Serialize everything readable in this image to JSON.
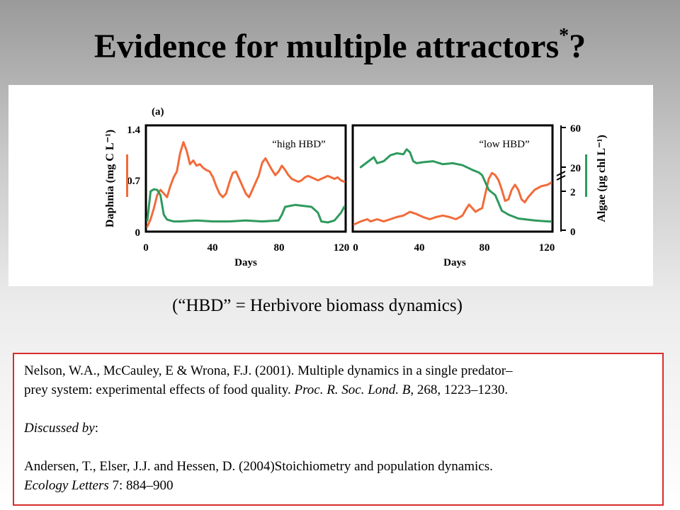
{
  "slide": {
    "title": "Evidence for multiple attractors",
    "title_mark": "*",
    "title_end": "?",
    "caption": "(“HBD” = Herbivore biomass dynamics)"
  },
  "figure": {
    "panel_label": "(a)",
    "left_axis_label": "Daphnia (mg C L⁻¹)",
    "right_axis_label": "Algae (µg chl L⁻¹)",
    "left_ticks": [
      "1.4",
      "0.7",
      "0"
    ],
    "right_ticks": [
      "60",
      "20",
      "2",
      "0"
    ],
    "panels": [
      {
        "label": "“high HBD”",
        "x_ticks": [
          "0",
          "40",
          "80",
          "120"
        ],
        "xlabel": "Days"
      },
      {
        "label": "“low HBD”",
        "x_ticks": [
          "0",
          "40",
          "80",
          "120"
        ],
        "xlabel": "Days"
      }
    ]
  },
  "chart_data": {
    "type": "line",
    "xlabel": "Days",
    "ylabel_left": "Daphnia (mg C L⁻¹)",
    "ylabel_right": "Algae (µg chl L⁻¹)",
    "xlim": [
      0,
      120
    ],
    "ylim_left": [
      0,
      1.4
    ],
    "colors": {
      "daphnia": "#f26b3a",
      "algae": "#2e9a5e"
    },
    "panels": [
      {
        "name": "high HBD",
        "series": [
          {
            "name": "Daphnia",
            "axis": "left",
            "x": [
              0,
              2,
              4,
              6,
              8,
              10,
              12,
              14,
              16,
              18,
              20,
              22,
              24,
              26,
              28,
              30,
              32,
              34,
              36,
              38,
              40,
              42,
              44,
              46,
              48,
              50,
              52,
              54,
              56,
              58,
              60,
              62,
              64,
              66,
              68,
              70,
              72,
              74,
              76,
              78,
              80,
              82,
              84,
              86,
              88,
              90,
              92,
              94,
              96,
              98,
              100,
              102,
              104,
              106,
              108,
              110,
              112,
              114,
              116,
              118,
              120
            ],
            "y": [
              0.05,
              0.15,
              0.3,
              0.48,
              0.55,
              0.5,
              0.45,
              0.6,
              0.72,
              0.8,
              1.05,
              1.2,
              1.08,
              0.9,
              0.95,
              0.88,
              0.9,
              0.85,
              0.82,
              0.8,
              0.72,
              0.6,
              0.5,
              0.45,
              0.5,
              0.65,
              0.78,
              0.8,
              0.7,
              0.6,
              0.5,
              0.45,
              0.55,
              0.65,
              0.75,
              0.92,
              0.98,
              0.9,
              0.82,
              0.75,
              0.8,
              0.88,
              0.82,
              0.75,
              0.7,
              0.68,
              0.66,
              0.68,
              0.72,
              0.74,
              0.72,
              0.7,
              0.68,
              0.7,
              0.72,
              0.74,
              0.72,
              0.7,
              0.72,
              0.68,
              0.66
            ]
          },
          {
            "name": "Algae",
            "axis": "right",
            "x": [
              0,
              2,
              4,
              6,
              8,
              10,
              12,
              14,
              16,
              20,
              30,
              40,
              50,
              60,
              70,
              80,
              82,
              84,
              90,
              100,
              104,
              106,
              110,
              114,
              118,
              120
            ],
            "y": [
              0.5,
              2.0,
              3.5,
              3.0,
              1.8,
              0.8,
              0.55,
              0.5,
              0.45,
              0.45,
              0.5,
              0.45,
              0.45,
              0.5,
              0.45,
              0.5,
              0.8,
              1.2,
              1.3,
              1.2,
              0.9,
              0.45,
              0.4,
              0.5,
              0.9,
              1.2
            ]
          }
        ]
      },
      {
        "name": "low HBD",
        "series": [
          {
            "name": "Daphnia",
            "axis": "left",
            "x": [
              0,
              4,
              8,
              10,
              14,
              18,
              22,
              26,
              30,
              34,
              38,
              42,
              46,
              50,
              54,
              58,
              62,
              66,
              68,
              70,
              72,
              74,
              76,
              78,
              80,
              82,
              84,
              86,
              88,
              90,
              92,
              94,
              96,
              98,
              100,
              102,
              104,
              106,
              110,
              114,
              118,
              120
            ],
            "y": [
              0.08,
              0.12,
              0.15,
              0.12,
              0.15,
              0.12,
              0.15,
              0.18,
              0.2,
              0.25,
              0.22,
              0.18,
              0.15,
              0.18,
              0.2,
              0.18,
              0.15,
              0.2,
              0.28,
              0.35,
              0.3,
              0.25,
              0.28,
              0.3,
              0.5,
              0.7,
              0.78,
              0.75,
              0.68,
              0.55,
              0.4,
              0.42,
              0.55,
              0.62,
              0.55,
              0.42,
              0.38,
              0.45,
              0.55,
              0.6,
              0.62,
              0.65
            ]
          },
          {
            "name": "Algae",
            "axis": "right",
            "x": [
              4,
              8,
              12,
              14,
              18,
              22,
              26,
              30,
              32,
              34,
              36,
              38,
              42,
              48,
              54,
              60,
              66,
              72,
              76,
              78,
              82,
              86,
              90,
              94,
              100,
              110,
              118,
              120
            ],
            "y": [
              20,
              25,
              30,
              24,
              26,
              32,
              34,
              33,
              38,
              35,
              26,
              24,
              25,
              26,
              23,
              24,
              22,
              18,
              16,
              14,
              3,
              1.8,
              1.0,
              0.8,
              0.6,
              0.5,
              0.45,
              0.45
            ]
          }
        ]
      }
    ]
  },
  "citation": {
    "line1": "Nelson, W.A., McCauley, E & Wrona, F.J. (2001). Multiple dynamics in a single predator–",
    "line2a": "prey system: experimental effects of food quality. ",
    "line2_journal": "Proc. R. Soc. Lond. B",
    "line2b": ", 268, 1223–1230.",
    "discussed_label": "Discussed by",
    "discussed_colon": ":",
    "line4": "Andersen, T., Elser, J.J. and Hessen, D.  (2004)Stoichiometry and population dynamics.",
    "line5_journal": "Ecology Letters",
    "line5b": " 7: 884–900"
  }
}
